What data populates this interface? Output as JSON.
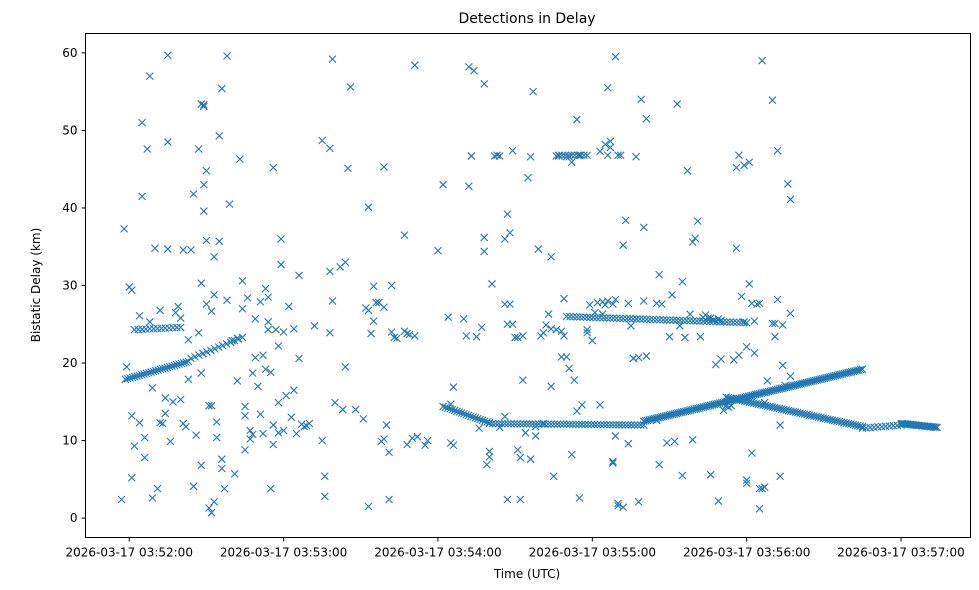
{
  "chart_data": {
    "type": "scatter",
    "title": "Detections in Delay",
    "xlabel": "Time (UTC)",
    "ylabel": "Bistatic Delay (km)",
    "marker": "x",
    "color": "#1f77b4",
    "grid": false,
    "xlim_seconds": [
      -17,
      327
    ],
    "ylim": [
      -2.5,
      62.5
    ],
    "x_ticks": [
      {
        "t": 0,
        "label": "2026-03-17 03:52:00"
      },
      {
        "t": 60,
        "label": "2026-03-17 03:53:00"
      },
      {
        "t": 120,
        "label": "2026-03-17 03:54:00"
      },
      {
        "t": 180,
        "label": "2026-03-17 03:55:00"
      },
      {
        "t": 240,
        "label": "2026-03-17 03:56:00"
      },
      {
        "t": 300,
        "label": "2026-03-17 03:57:00"
      }
    ],
    "y_ticks": [
      0,
      10,
      20,
      30,
      40,
      50,
      60
    ],
    "x_units": "seconds since 2026-03-17 03:52:00 UTC",
    "tracks": [
      {
        "name": "rising track A",
        "from": [
          -1.5,
          17.9
        ],
        "to": [
          23,
          20.2
        ],
        "step": 0.9
      },
      {
        "name": "rising track B",
        "from": [
          24,
          20.6
        ],
        "to": [
          44,
          23.3
        ],
        "step": 1.5
      },
      {
        "name": "descending track",
        "from": [
          122,
          14.4
        ],
        "to": [
          140,
          12.3
        ],
        "step": 0.9
      },
      {
        "name": "flat track",
        "from": [
          140,
          12.2
        ],
        "to": [
          200,
          12.0
        ],
        "step": 1.2
      },
      {
        "name": "rising track C",
        "from": [
          200,
          12.5
        ],
        "to": [
          285,
          19.2
        ],
        "step": 0.7
      },
      {
        "name": "descending track B",
        "from": [
          232,
          15.6
        ],
        "to": [
          285,
          11.8
        ],
        "step": 0.9
      },
      {
        "name": "flat track B",
        "from": [
          285,
          11.6
        ],
        "to": [
          300,
          12.0
        ],
        "step": 1.5
      },
      {
        "name": "flat track C",
        "from": [
          300,
          12.2
        ],
        "to": [
          314,
          11.7
        ],
        "step": 0.6
      },
      {
        "name": "plateau 26",
        "from": [
          170,
          26.0
        ],
        "to": [
          240,
          25.2
        ],
        "step": 1.3
      },
      {
        "name": "plateau 24",
        "from": [
          2,
          24.3
        ],
        "to": [
          20,
          24.6
        ],
        "step": 1.5
      },
      {
        "name": "plateau 47",
        "from": [
          167,
          46.8
        ],
        "to": [
          178,
          46.8
        ],
        "step": 1.2
      }
    ],
    "points": [
      [
        -3,
        2.4
      ],
      [
        -2,
        37.3
      ],
      [
        -1,
        19.5
      ],
      [
        0,
        29.8
      ],
      [
        1,
        29.4
      ],
      [
        1,
        5.2
      ],
      [
        1,
        13.2
      ],
      [
        2,
        9.3
      ],
      [
        4,
        26.1
      ],
      [
        4,
        12.3
      ],
      [
        5,
        51.0
      ],
      [
        5,
        41.5
      ],
      [
        6,
        10.4
      ],
      [
        6,
        7.8
      ],
      [
        7,
        47.6
      ],
      [
        8,
        57.0
      ],
      [
        8,
        25.3
      ],
      [
        9,
        16.8
      ],
      [
        9,
        2.6
      ],
      [
        10,
        34.8
      ],
      [
        11,
        3.8
      ],
      [
        12,
        26.8
      ],
      [
        12,
        12.3
      ],
      [
        13,
        12.2
      ],
      [
        14,
        13.5
      ],
      [
        14,
        15.5
      ],
      [
        15,
        59.7
      ],
      [
        15,
        48.5
      ],
      [
        15,
        34.7
      ],
      [
        16,
        9.9
      ],
      [
        17,
        15.0
      ],
      [
        18,
        26.5
      ],
      [
        19,
        27.3
      ],
      [
        20,
        25.8
      ],
      [
        20,
        15.3
      ],
      [
        21,
        34.6
      ],
      [
        21,
        12.2
      ],
      [
        22,
        11.8
      ],
      [
        23,
        23.0
      ],
      [
        23,
        17.9
      ],
      [
        24,
        34.6
      ],
      [
        25,
        4.1
      ],
      [
        25,
        41.8
      ],
      [
        26,
        10.7
      ],
      [
        27,
        47.6
      ],
      [
        27,
        23.9
      ],
      [
        28,
        53.4
      ],
      [
        28,
        30.3
      ],
      [
        28,
        18.7
      ],
      [
        28,
        6.8
      ],
      [
        29,
        53.3
      ],
      [
        29,
        53.1
      ],
      [
        29,
        43.0
      ],
      [
        29,
        39.6
      ],
      [
        30,
        44.8
      ],
      [
        30,
        35.8
      ],
      [
        30,
        27.6
      ],
      [
        31,
        14.5
      ],
      [
        31,
        1.3
      ],
      [
        32,
        14.5
      ],
      [
        32,
        0.7
      ],
      [
        32,
        26.7
      ],
      [
        33,
        33.7
      ],
      [
        33,
        28.8
      ],
      [
        33,
        2.1
      ],
      [
        34,
        12.4
      ],
      [
        34,
        10.4
      ],
      [
        35,
        35.7
      ],
      [
        35,
        49.3
      ],
      [
        36,
        55.4
      ],
      [
        36,
        7.6
      ],
      [
        36,
        6.4
      ],
      [
        37,
        3.8
      ],
      [
        38,
        59.6
      ],
      [
        38,
        28.1
      ],
      [
        39,
        40.5
      ],
      [
        40,
        22.9
      ],
      [
        41,
        5.7
      ],
      [
        42,
        23.2
      ],
      [
        42,
        17.7
      ],
      [
        43,
        46.3
      ],
      [
        44,
        27.0
      ],
      [
        44,
        30.6
      ],
      [
        45,
        14.4
      ],
      [
        45,
        13.2
      ],
      [
        45,
        8.8
      ],
      [
        46,
        28.4
      ],
      [
        47,
        10.2
      ],
      [
        47,
        11.3
      ],
      [
        48,
        10.8
      ],
      [
        48,
        18.7
      ],
      [
        49,
        20.7
      ],
      [
        49,
        25.7
      ],
      [
        50,
        17.0
      ],
      [
        51,
        27.9
      ],
      [
        51,
        13.4
      ],
      [
        52,
        10.9
      ],
      [
        52,
        21.0
      ],
      [
        53,
        29.6
      ],
      [
        53,
        19.2
      ],
      [
        54,
        25.3
      ],
      [
        54,
        28.5
      ],
      [
        54,
        24.3
      ],
      [
        55,
        18.8
      ],
      [
        55,
        3.8
      ],
      [
        56,
        12.0
      ],
      [
        56,
        45.2
      ],
      [
        56,
        9.5
      ],
      [
        57,
        24.3
      ],
      [
        58,
        11.0
      ],
      [
        58,
        14.9
      ],
      [
        58,
        22.2
      ],
      [
        59,
        32.7
      ],
      [
        59,
        36.0
      ],
      [
        60,
        24.0
      ],
      [
        60,
        11.3
      ],
      [
        61,
        15.8
      ],
      [
        62,
        27.3
      ],
      [
        63,
        13.0
      ],
      [
        64,
        24.4
      ],
      [
        64,
        16.5
      ],
      [
        65,
        10.9
      ],
      [
        66,
        20.6
      ],
      [
        66,
        31.3
      ],
      [
        67,
        12.1
      ],
      [
        68,
        11.8
      ],
      [
        69,
        11.9
      ],
      [
        70,
        12.2
      ],
      [
        72,
        24.8
      ],
      [
        75,
        10.0
      ],
      [
        75,
        48.7
      ],
      [
        76,
        5.4
      ],
      [
        76,
        2.8
      ],
      [
        78,
        47.7
      ],
      [
        78,
        31.8
      ],
      [
        78,
        23.9
      ],
      [
        79,
        59.2
      ],
      [
        79,
        28.0
      ],
      [
        80,
        14.9
      ],
      [
        82,
        32.4
      ],
      [
        83,
        14.0
      ],
      [
        84,
        33.0
      ],
      [
        84,
        19.5
      ],
      [
        85,
        45.1
      ],
      [
        86,
        55.6
      ],
      [
        88,
        14.0
      ],
      [
        91,
        12.8
      ],
      [
        92,
        27.1
      ],
      [
        93,
        40.1
      ],
      [
        93,
        26.8
      ],
      [
        93,
        1.5
      ],
      [
        94,
        23.8
      ],
      [
        95,
        25.4
      ],
      [
        95,
        29.9
      ],
      [
        96,
        27.8
      ],
      [
        97,
        27.8
      ],
      [
        98,
        9.9
      ],
      [
        99,
        27.2
      ],
      [
        99,
        45.3
      ],
      [
        99,
        10.2
      ],
      [
        100,
        12.0
      ],
      [
        101,
        2.4
      ],
      [
        101,
        8.5
      ],
      [
        102,
        30.0
      ],
      [
        102,
        24.0
      ],
      [
        103,
        23.3
      ],
      [
        104,
        23.2
      ],
      [
        107,
        24.1
      ],
      [
        107,
        36.5
      ],
      [
        108,
        9.5
      ],
      [
        108,
        23.8
      ],
      [
        109,
        23.7
      ],
      [
        110,
        10.3
      ],
      [
        111,
        58.4
      ],
      [
        111,
        23.5
      ],
      [
        112,
        10.5
      ],
      [
        115,
        9.4
      ],
      [
        116,
        10.0
      ],
      [
        120,
        34.5
      ],
      [
        122,
        43.0
      ],
      [
        124,
        25.9
      ],
      [
        125,
        14.7
      ],
      [
        125,
        9.7
      ],
      [
        126,
        9.4
      ],
      [
        126,
        16.9
      ],
      [
        130,
        25.7
      ],
      [
        131,
        23.5
      ],
      [
        132,
        42.8
      ],
      [
        132,
        58.2
      ],
      [
        133,
        46.7
      ],
      [
        133,
        46.7
      ],
      [
        134,
        57.7
      ],
      [
        135,
        23.4
      ],
      [
        136,
        11.6
      ],
      [
        137,
        24.6
      ],
      [
        138,
        34.4
      ],
      [
        138,
        56.0
      ],
      [
        138,
        36.2
      ],
      [
        139,
        6.9
      ],
      [
        140,
        7.9
      ],
      [
        140,
        8.6
      ],
      [
        141,
        30.2
      ],
      [
        142,
        46.7
      ],
      [
        143,
        46.8
      ],
      [
        144,
        46.7
      ],
      [
        144,
        11.7
      ],
      [
        146,
        36.0
      ],
      [
        146,
        13.1
      ],
      [
        146,
        27.6
      ],
      [
        147,
        39.2
      ],
      [
        147,
        2.4
      ],
      [
        147,
        25.0
      ],
      [
        148,
        36.8
      ],
      [
        148,
        27.6
      ],
      [
        149,
        47.4
      ],
      [
        149,
        25.0
      ],
      [
        150,
        23.3
      ],
      [
        151,
        8.8
      ],
      [
        151,
        23.3
      ],
      [
        152,
        7.8
      ],
      [
        152,
        2.4
      ],
      [
        153,
        17.8
      ],
      [
        153,
        23.5
      ],
      [
        154,
        11.0
      ],
      [
        155,
        43.9
      ],
      [
        156,
        7.6
      ],
      [
        156,
        46.6
      ],
      [
        157,
        55.0
      ],
      [
        158,
        10.6
      ],
      [
        158,
        11.8
      ],
      [
        159,
        34.7
      ],
      [
        160,
        23.5
      ],
      [
        161,
        23.9
      ],
      [
        161,
        12.2
      ],
      [
        162,
        24.9
      ],
      [
        163,
        26.3
      ],
      [
        164,
        24.4
      ],
      [
        164,
        33.7
      ],
      [
        164,
        17.0
      ],
      [
        165,
        5.4
      ],
      [
        166,
        24.3
      ],
      [
        166,
        46.7
      ],
      [
        167,
        46.7
      ],
      [
        168,
        24.1
      ],
      [
        168,
        20.8
      ],
      [
        169,
        28.3
      ],
      [
        169,
        23.5
      ],
      [
        170,
        20.8
      ],
      [
        170,
        46.6
      ],
      [
        171,
        46.6
      ],
      [
        171,
        19.3
      ],
      [
        172,
        8.2
      ],
      [
        172,
        45.9
      ],
      [
        173,
        17.8
      ],
      [
        174,
        51.4
      ],
      [
        174,
        13.8
      ],
      [
        175,
        46.8
      ],
      [
        175,
        2.6
      ],
      [
        176,
        14.6
      ],
      [
        178,
        24.3
      ],
      [
        178,
        23.9
      ],
      [
        179,
        27.5
      ],
      [
        180,
        22.9
      ],
      [
        181,
        26.5
      ],
      [
        182,
        27.8
      ],
      [
        183,
        47.3
      ],
      [
        183,
        14.6
      ],
      [
        184,
        27.9
      ],
      [
        184,
        26.3
      ],
      [
        185,
        48.2
      ],
      [
        185,
        27.5
      ],
      [
        186,
        55.5
      ],
      [
        186,
        28.0
      ],
      [
        186,
        46.8
      ],
      [
        187,
        47.8
      ],
      [
        187,
        48.6
      ],
      [
        188,
        7.3
      ],
      [
        188,
        7.1
      ],
      [
        188,
        27.6
      ],
      [
        189,
        28.2
      ],
      [
        189,
        59.5
      ],
      [
        189,
        10.6
      ],
      [
        190,
        1.9
      ],
      [
        190,
        46.8
      ],
      [
        190,
        1.6
      ],
      [
        191,
        46.8
      ],
      [
        192,
        1.4
      ],
      [
        192,
        35.2
      ],
      [
        193,
        38.4
      ],
      [
        194,
        9.6
      ],
      [
        194,
        27.7
      ],
      [
        195,
        24.8
      ],
      [
        196,
        20.6
      ],
      [
        196,
        20.6
      ],
      [
        197,
        46.6
      ],
      [
        198,
        20.7
      ],
      [
        198,
        2.1
      ],
      [
        199,
        54.0
      ],
      [
        200,
        37.5
      ],
      [
        200,
        28.0
      ],
      [
        201,
        51.5
      ],
      [
        201,
        20.9
      ],
      [
        205,
        12.6
      ],
      [
        205,
        27.7
      ],
      [
        206,
        6.9
      ],
      [
        206,
        31.4
      ],
      [
        207,
        27.6
      ],
      [
        209,
        9.7
      ],
      [
        210,
        23.4
      ],
      [
        211,
        28.8
      ],
      [
        212,
        9.9
      ],
      [
        213,
        53.4
      ],
      [
        214,
        24.8
      ],
      [
        215,
        30.5
      ],
      [
        215,
        5.5
      ],
      [
        216,
        23.3
      ],
      [
        217,
        44.8
      ],
      [
        218,
        26.3
      ],
      [
        219,
        35.6
      ],
      [
        219,
        10.1
      ],
      [
        220,
        36.1
      ],
      [
        221,
        38.3
      ],
      [
        222,
        23.4
      ],
      [
        223,
        25.9
      ],
      [
        224,
        26.2
      ],
      [
        225,
        25.8
      ],
      [
        226,
        5.6
      ],
      [
        226,
        25.8
      ],
      [
        227,
        25.6
      ],
      [
        228,
        19.8
      ],
      [
        229,
        2.2
      ],
      [
        229,
        25.7
      ],
      [
        230,
        25.5
      ],
      [
        230,
        20.5
      ],
      [
        231,
        13.9
      ],
      [
        232,
        14.5
      ],
      [
        233,
        14.3
      ],
      [
        234,
        14.5
      ],
      [
        235,
        20.4
      ],
      [
        236,
        34.8
      ],
      [
        236,
        45.2
      ],
      [
        237,
        46.8
      ],
      [
        237,
        21.0
      ],
      [
        238,
        28.6
      ],
      [
        239,
        45.5
      ],
      [
        239,
        25.3
      ],
      [
        240,
        22.1
      ],
      [
        240,
        4.9
      ],
      [
        240,
        4.5
      ],
      [
        241,
        30.2
      ],
      [
        241,
        45.9
      ],
      [
        242,
        27.7
      ],
      [
        242,
        8.4
      ],
      [
        243,
        21.3
      ],
      [
        243,
        25.4
      ],
      [
        244,
        27.6
      ],
      [
        245,
        1.2
      ],
      [
        245,
        27.7
      ],
      [
        245,
        3.8
      ],
      [
        246,
        59.0
      ],
      [
        246,
        3.8
      ],
      [
        247,
        4.0
      ],
      [
        247,
        14.9
      ],
      [
        248,
        17.7
      ],
      [
        250,
        25.1
      ],
      [
        250,
        53.9
      ],
      [
        251,
        23.4
      ],
      [
        251,
        25.1
      ],
      [
        252,
        47.4
      ],
      [
        252,
        28.2
      ],
      [
        253,
        12.0
      ],
      [
        253,
        5.4
      ],
      [
        254,
        19.7
      ],
      [
        254,
        24.9
      ],
      [
        255,
        17.1
      ],
      [
        256,
        43.1
      ],
      [
        257,
        41.1
      ],
      [
        257,
        26.4
      ],
      [
        257,
        18.3
      ]
    ]
  }
}
